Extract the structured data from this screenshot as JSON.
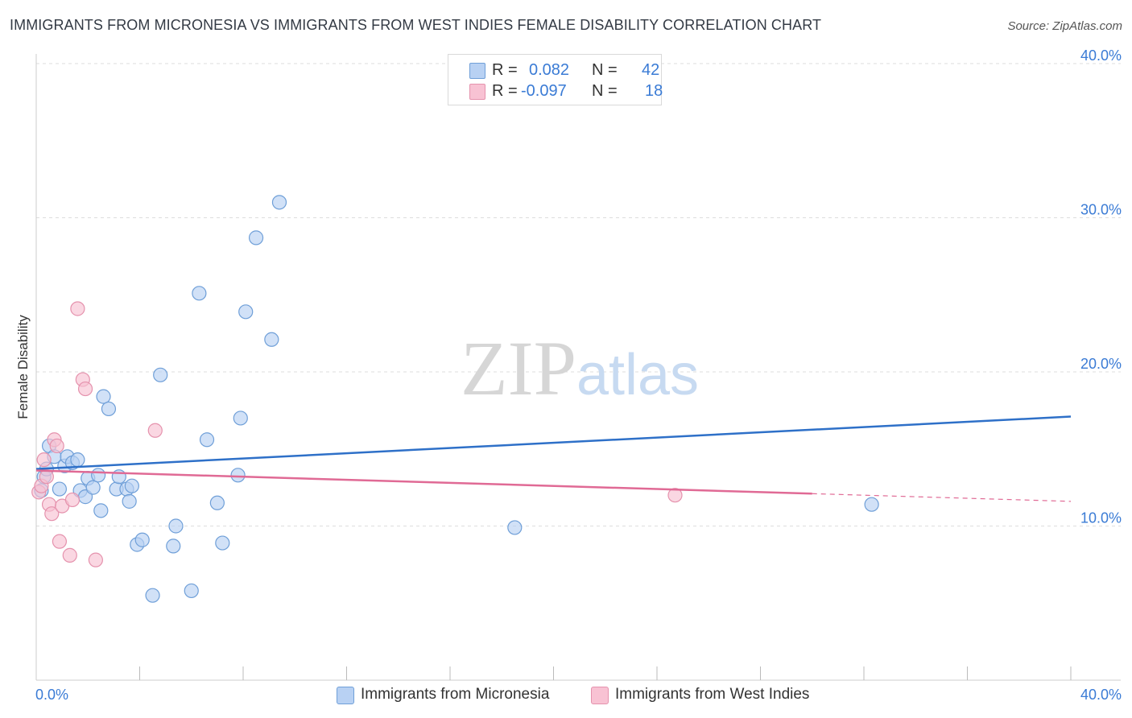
{
  "chart_data": {
    "type": "scatter",
    "title": "IMMIGRANTS FROM MICRONESIA VS IMMIGRANTS FROM WEST INDIES FEMALE DISABILITY CORRELATION CHART",
    "source": "Source: ZipAtlas.com",
    "ylabel": "Female Disability",
    "xlim": [
      0,
      40
    ],
    "ylim": [
      0,
      40
    ],
    "x_tick_labels": [
      "0.0%",
      "40.0%"
    ],
    "y_ticks": [
      {
        "value": 10,
        "label": "10.0%"
      },
      {
        "value": 20,
        "label": "20.0%"
      },
      {
        "value": 30,
        "label": "30.0%"
      },
      {
        "value": 40,
        "label": "40.0%"
      }
    ],
    "watermark": {
      "part1": "ZIP",
      "part2": "atlas"
    },
    "colors": {
      "micronesia_fill": "#b8d1f3",
      "micronesia_stroke": "#6f9fd8",
      "micronesia_line": "#2e70c8",
      "westindies_fill": "#f8c2d3",
      "westindies_stroke": "#e592ad",
      "westindies_line": "#e06a95"
    },
    "stats": [
      {
        "r_label": "R =",
        "r": "0.082",
        "n_label": "N =",
        "n": "42"
      },
      {
        "r_label": "R =",
        "r": "-0.097",
        "n_label": "N =",
        "n": "18"
      }
    ],
    "series": [
      {
        "name": "Immigrants from Micronesia",
        "points": [
          [
            0.2,
            12.3
          ],
          [
            0.3,
            13.2
          ],
          [
            0.4,
            13.7
          ],
          [
            0.5,
            15.2
          ],
          [
            0.7,
            14.5
          ],
          [
            0.9,
            12.4
          ],
          [
            1.1,
            13.9
          ],
          [
            1.2,
            14.5
          ],
          [
            1.4,
            14.1
          ],
          [
            1.6,
            14.3
          ],
          [
            1.7,
            12.3
          ],
          [
            1.9,
            11.9
          ],
          [
            2.0,
            13.1
          ],
          [
            2.2,
            12.5
          ],
          [
            2.4,
            13.3
          ],
          [
            2.5,
            11.0
          ],
          [
            2.6,
            18.4
          ],
          [
            2.8,
            17.6
          ],
          [
            3.1,
            12.4
          ],
          [
            3.2,
            13.2
          ],
          [
            3.5,
            12.4
          ],
          [
            3.6,
            11.6
          ],
          [
            3.7,
            12.6
          ],
          [
            3.9,
            8.8
          ],
          [
            4.1,
            9.1
          ],
          [
            4.5,
            5.5
          ],
          [
            4.8,
            19.8
          ],
          [
            5.3,
            8.7
          ],
          [
            5.4,
            10.0
          ],
          [
            6.0,
            5.8
          ],
          [
            6.3,
            25.1
          ],
          [
            6.6,
            15.6
          ],
          [
            7.0,
            11.5
          ],
          [
            7.2,
            8.9
          ],
          [
            7.8,
            13.3
          ],
          [
            7.9,
            17.0
          ],
          [
            8.1,
            23.9
          ],
          [
            8.5,
            28.7
          ],
          [
            9.1,
            22.1
          ],
          [
            9.4,
            31.0
          ],
          [
            18.5,
            9.9
          ],
          [
            32.3,
            11.4
          ]
        ],
        "trend": {
          "x0": 0,
          "y0": 13.7,
          "x1": 40,
          "y1": 17.1
        }
      },
      {
        "name": "Immigrants from West Indies",
        "points": [
          [
            0.1,
            12.2
          ],
          [
            0.2,
            12.6
          ],
          [
            0.3,
            14.3
          ],
          [
            0.4,
            13.2
          ],
          [
            0.5,
            11.4
          ],
          [
            0.6,
            10.8
          ],
          [
            0.7,
            15.6
          ],
          [
            0.8,
            15.2
          ],
          [
            0.9,
            9.0
          ],
          [
            1.0,
            11.3
          ],
          [
            1.3,
            8.1
          ],
          [
            1.4,
            11.7
          ],
          [
            1.6,
            24.1
          ],
          [
            1.8,
            19.5
          ],
          [
            1.9,
            18.9
          ],
          [
            2.3,
            7.8
          ],
          [
            4.6,
            16.2
          ],
          [
            24.7,
            12.0
          ]
        ],
        "trend": {
          "x0": 0,
          "y0": 13.6,
          "x1": 40,
          "y1": 11.6,
          "solid_until": 30
        }
      }
    ]
  }
}
